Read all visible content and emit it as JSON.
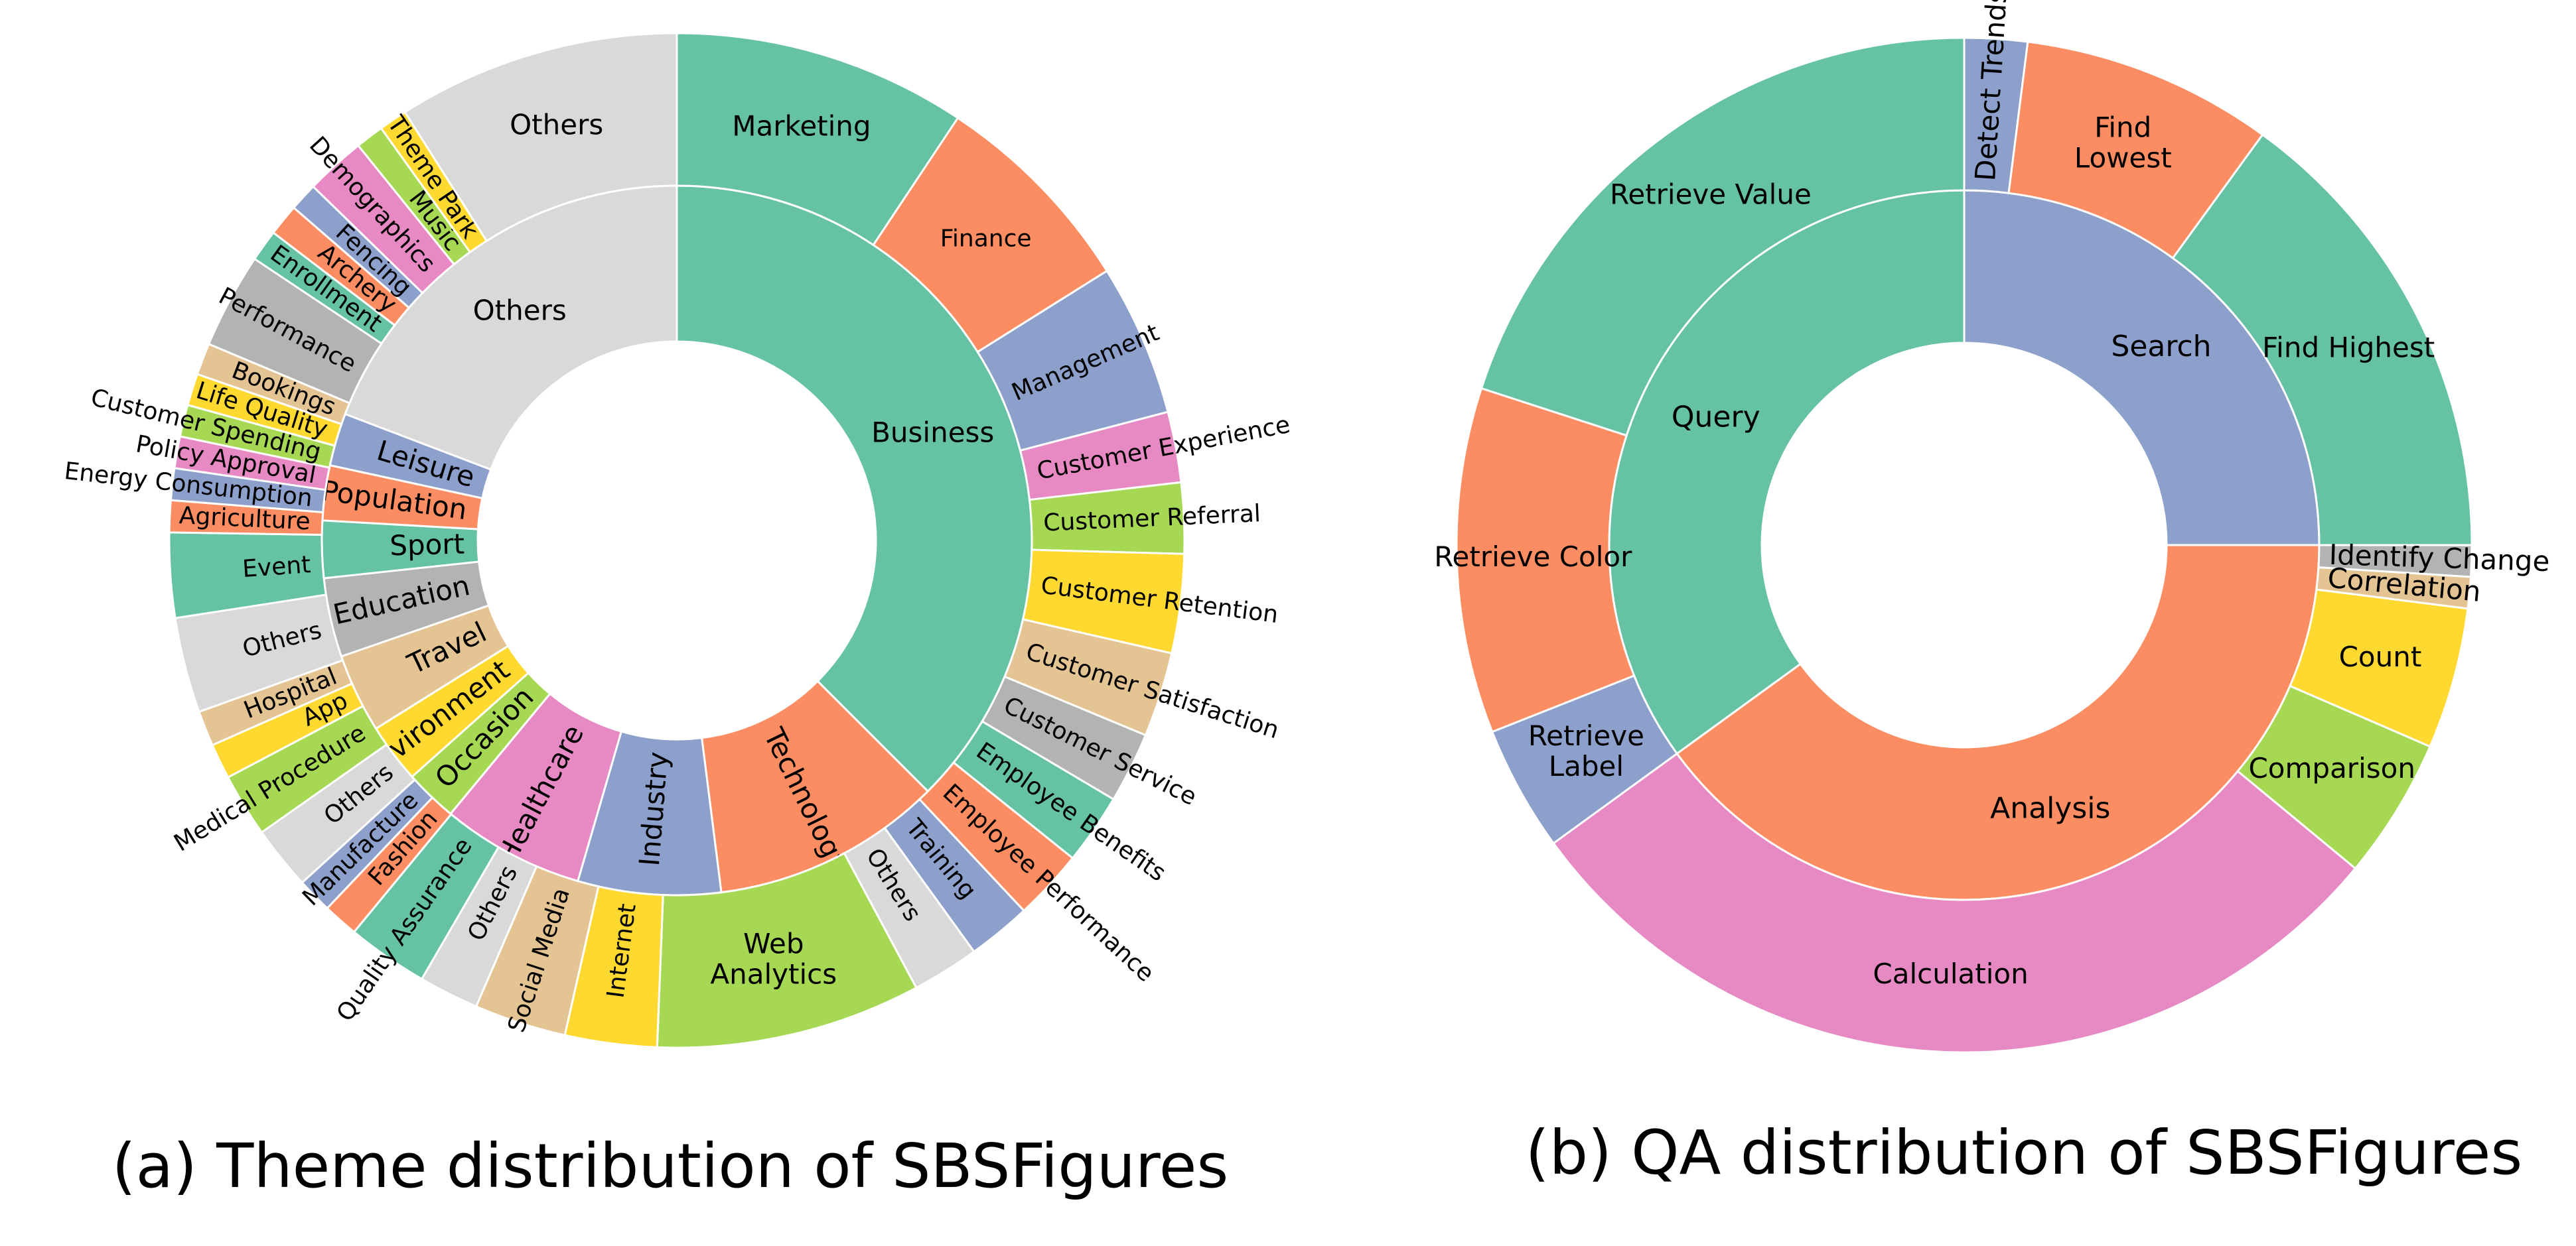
{
  "captions": {
    "left": "(a) Theme distribution of SBSFigures",
    "right": "(b) QA distribution of SBSFigures"
  },
  "palette": {
    "teal": "#66c2a5",
    "orange": "#fc8d62",
    "blue": "#8da0cb",
    "pink": "#e78ac3",
    "lime": "#a6d854",
    "yellow": "#ffd92f",
    "tan": "#e5c494",
    "grey": "#b3b3b3",
    "lightgrey": "#d9d9d9"
  },
  "chart_data": [
    {
      "type": "sunburst",
      "inner": [
        {
          "label": "Business",
          "value": 37.5,
          "color": "teal"
        },
        {
          "label": "Technology",
          "value": 10.5,
          "color": "orange"
        },
        {
          "label": "Industry",
          "value": 6.5,
          "color": "blue"
        },
        {
          "label": "Healthcare",
          "value": 6.5,
          "color": "pink"
        },
        {
          "label": "Occasion",
          "value": 2.4,
          "color": "lime"
        },
        {
          "label": "Environment",
          "value": 2.7,
          "color": "yellow"
        },
        {
          "label": "Travel",
          "value": 3.6,
          "color": "tan"
        },
        {
          "label": "Education",
          "value": 3.6,
          "color": "grey"
        },
        {
          "label": "Sport",
          "value": 2.6,
          "color": "teal"
        },
        {
          "label": "Population",
          "value": 2.5,
          "color": "orange"
        },
        {
          "label": "Leisure",
          "value": 2.4,
          "color": "blue"
        },
        {
          "label": "Others",
          "value": 19.2,
          "color": "lightgrey"
        }
      ],
      "outer": [
        {
          "label": "Marketing",
          "value": 8.3,
          "color": "teal"
        },
        {
          "label": "Finance",
          "value": 6.0,
          "color": "orange"
        },
        {
          "label": "Management",
          "value": 4.3,
          "color": "blue"
        },
        {
          "label": "Customer Experience",
          "value": 2.0,
          "color": "pink"
        },
        {
          "label": "Customer Referral",
          "value": 2.0,
          "color": "lime"
        },
        {
          "label": "Customer Retention",
          "value": 2.8,
          "color": "yellow"
        },
        {
          "label": "Customer Satisfaction",
          "value": 2.4,
          "color": "tan"
        },
        {
          "label": "Customer Service",
          "value": 2.0,
          "color": "grey"
        },
        {
          "label": "Employee Benefits",
          "value": 2.0,
          "color": "teal"
        },
        {
          "label": "Employee Performance",
          "value": 2.0,
          "color": "orange"
        },
        {
          "label": "Training",
          "value": 1.8,
          "color": "blue"
        },
        {
          "label": "Others",
          "value": 1.9,
          "color": "lightgrey"
        },
        {
          "label": "Web Analytics",
          "value": 7.5,
          "color": "lime"
        },
        {
          "label": "Internet",
          "value": 2.6,
          "color": "yellow"
        },
        {
          "label": "Social Media",
          "value": 2.6,
          "color": "tan"
        },
        {
          "label": "Others",
          "value": 1.7,
          "color": "lightgrey"
        },
        {
          "label": "Quality Assurance",
          "value": 2.3,
          "color": "teal"
        },
        {
          "label": "Fashion",
          "value": 1.0,
          "color": "orange"
        },
        {
          "label": "Manufacture",
          "value": 1.0,
          "color": "blue"
        },
        {
          "label": "Others",
          "value": 1.8,
          "color": "lightgrey"
        },
        {
          "label": "Medical Procedure",
          "value": 1.8,
          "color": "lime"
        },
        {
          "label": "App",
          "value": 1.0,
          "color": "yellow"
        },
        {
          "label": "Hospital",
          "value": 1.0,
          "color": "tan"
        },
        {
          "label": "Others",
          "value": 2.7,
          "color": "lightgrey"
        },
        {
          "label": "Event",
          "value": 2.4,
          "color": "teal"
        },
        {
          "label": "Agriculture",
          "value": 0.9,
          "color": "orange"
        },
        {
          "label": "Energy Consumption",
          "value": 0.9,
          "color": "blue"
        },
        {
          "label": "Policy Approval",
          "value": 0.9,
          "color": "pink"
        },
        {
          "label": "Customer Spending",
          "value": 0.9,
          "color": "lime"
        },
        {
          "label": "Life Quality",
          "value": 0.9,
          "color": "yellow"
        },
        {
          "label": "Bookings",
          "value": 0.9,
          "color": "tan"
        },
        {
          "label": "Performance",
          "value": 2.7,
          "color": "grey"
        },
        {
          "label": "Enrollment",
          "value": 0.9,
          "color": "teal"
        },
        {
          "label": "Archery",
          "value": 0.9,
          "color": "orange"
        },
        {
          "label": "Fencing",
          "value": 0.8,
          "color": "blue"
        },
        {
          "label": "Demographics",
          "value": 1.7,
          "color": "pink"
        },
        {
          "label": "Music",
          "value": 0.8,
          "color": "lime"
        },
        {
          "label": "Theme Park",
          "value": 0.8,
          "color": "yellow"
        },
        {
          "label": "Others",
          "value": 8.0,
          "color": "lightgrey"
        }
      ]
    },
    {
      "type": "sunburst",
      "inner": [
        {
          "label": "Search",
          "value": 25.0,
          "color": "blue"
        },
        {
          "label": "Analysis",
          "value": 40.0,
          "color": "orange"
        },
        {
          "label": "Query",
          "value": 35.0,
          "color": "teal"
        }
      ],
      "outer": [
        {
          "label": "Detect Trends",
          "value": 2.0,
          "color": "blue"
        },
        {
          "label": "Find Lowest",
          "value": 8.0,
          "color": "orange"
        },
        {
          "label": "Find Highest",
          "value": 15.0,
          "color": "teal"
        },
        {
          "label": "Identify Change",
          "value": 1.0,
          "color": "grey"
        },
        {
          "label": "Correlation",
          "value": 1.0,
          "color": "tan"
        },
        {
          "label": "Count",
          "value": 4.5,
          "color": "yellow"
        },
        {
          "label": "Comparison",
          "value": 4.5,
          "color": "lime"
        },
        {
          "label": "Calculation",
          "value": 29.0,
          "color": "pink"
        },
        {
          "label": "Retrieve Label",
          "value": 4.0,
          "color": "blue"
        },
        {
          "label": "Retrieve Color",
          "value": 11.0,
          "color": "orange"
        },
        {
          "label": "Retrieve Value",
          "value": 20.0,
          "color": "teal"
        }
      ]
    }
  ]
}
